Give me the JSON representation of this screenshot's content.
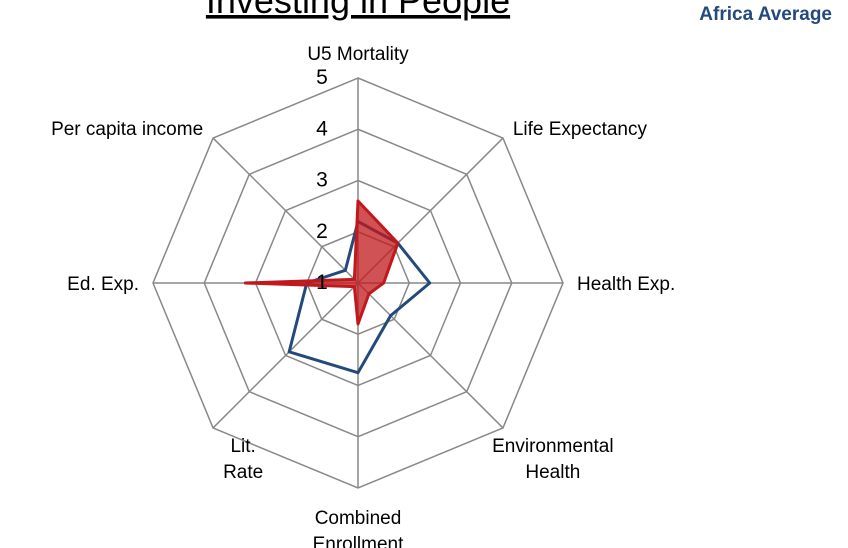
{
  "chart_data": {
    "type": "radar",
    "title": "Investing in People",
    "categories": [
      "U5 Mortality",
      "Life Expectancy",
      "Health Exp.",
      "Environmental Health",
      "Combined Enrollment",
      "Lit. Rate",
      "Ed. Exp.",
      "Per capita income"
    ],
    "series": [
      {
        "name": "Africa Average",
        "color": "#244a7c",
        "fill": false,
        "values": [
          2.2,
          2.1,
          2.4,
          1.9,
          2.75,
          2.9,
          2.0,
          1.35
        ]
      },
      {
        "color": "#c0181c",
        "fill": true,
        "values": [
          2.6,
          2.1,
          1.5,
          1.3,
          1.8,
          1.1,
          3.2,
          1.1
        ]
      }
    ],
    "ylim": [
      1,
      5
    ],
    "yticks": [
      1,
      2,
      3,
      4,
      5
    ],
    "grid": true
  }
}
